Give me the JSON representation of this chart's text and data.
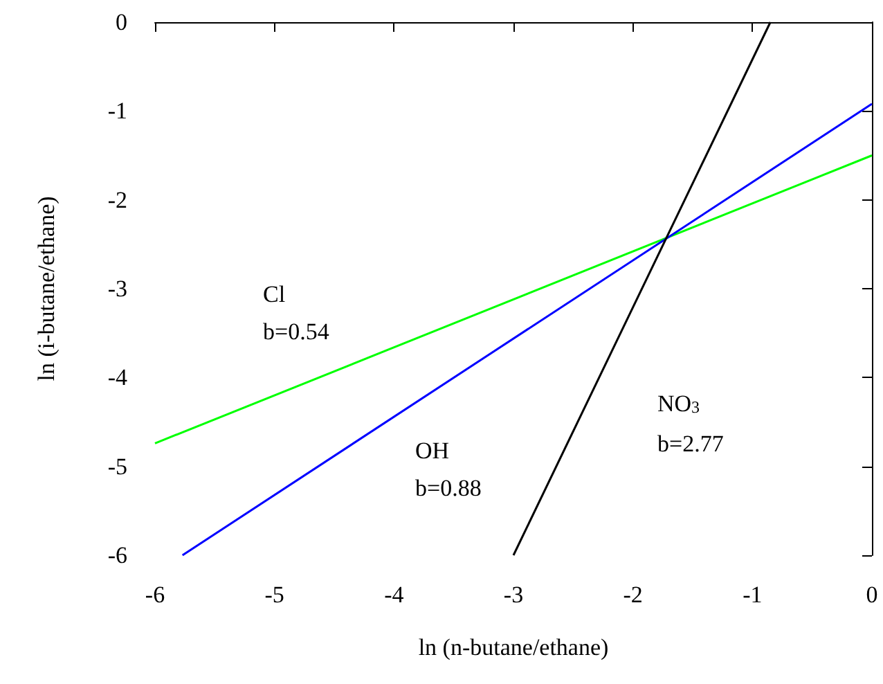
{
  "chart_data": {
    "type": "line",
    "xlabel": "ln (n-butane/ethane)",
    "ylabel": "ln (i-butane/ethane)",
    "xlim": [
      -6,
      0
    ],
    "ylim": [
      -6,
      0
    ],
    "xticks": [
      -6,
      -5,
      -4,
      -3,
      -2,
      -1,
      0
    ],
    "yticks": [
      -6,
      -5,
      -4,
      -3,
      -2,
      -1,
      0
    ],
    "grid": false,
    "marker": "none",
    "line_style": "solid",
    "series": [
      {
        "color": "#00ff00",
        "x": [
          -6,
          0
        ],
        "values": [
          -4.74,
          -1.5
        ]
      },
      {
        "color": "#0000ff",
        "x": [
          -5.77,
          0
        ],
        "values": [
          -6,
          -0.92
        ]
      },
      {
        "color": "#000000",
        "x": [
          -3,
          -0.85
        ],
        "values": [
          -6,
          0
        ]
      }
    ],
    "annotations": [
      "Cl",
      "b=0.54",
      "OH",
      "b=0.88",
      "NO$_{3}$",
      "b=2.77"
    ]
  }
}
